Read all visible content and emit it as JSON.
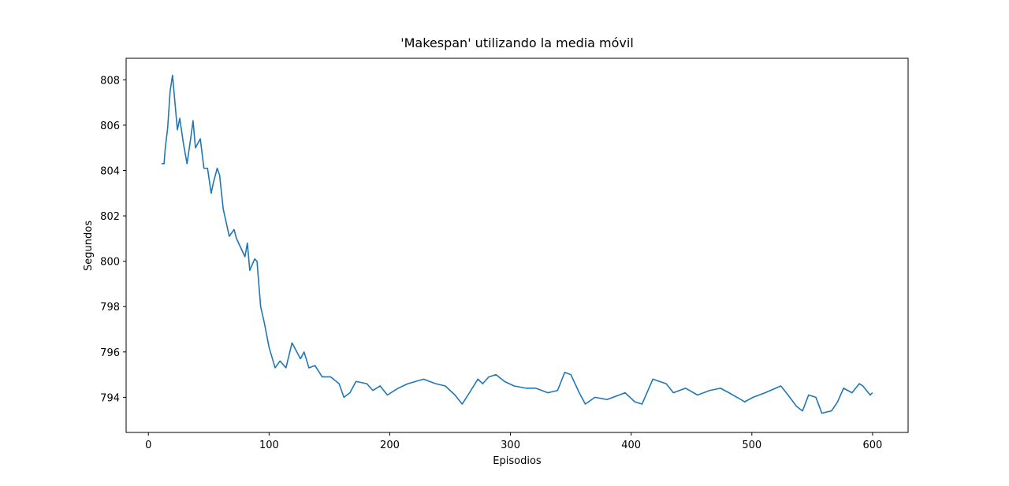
{
  "chart_data": {
    "type": "line",
    "title": "'Makespan' utilizando la media móvil",
    "x_label": "Episodios",
    "y_label": "Segundos",
    "x": [
      11,
      13,
      14,
      16,
      18,
      20,
      24,
      26,
      29,
      32,
      35,
      37,
      39,
      43,
      46,
      49,
      52,
      54,
      57,
      59,
      62,
      67,
      71,
      73,
      80,
      82,
      84,
      88,
      90,
      93,
      96,
      100,
      105,
      109,
      114,
      119,
      126,
      129,
      133,
      138,
      144,
      151,
      158,
      162,
      167,
      172,
      181,
      186,
      192,
      198,
      207,
      215,
      228,
      238,
      246,
      254,
      260,
      266,
      273,
      277,
      282,
      288,
      295,
      303,
      313,
      321,
      331,
      339,
      345,
      350,
      357,
      362,
      370,
      380,
      395,
      403,
      409,
      418,
      429,
      435,
      445,
      455,
      465,
      474,
      481,
      491,
      494,
      501,
      511,
      524,
      530,
      537,
      542,
      547,
      553,
      558,
      566,
      571,
      576,
      583,
      589,
      592,
      598,
      600
    ],
    "series": [
      {
        "name": "Makespan",
        "color": "#1f77b4",
        "values": [
          804.3,
          804.3,
          805.0,
          805.9,
          807.5,
          808.2,
          805.8,
          806.3,
          805.2,
          804.3,
          805.4,
          806.2,
          805.0,
          805.4,
          804.1,
          804.1,
          803.0,
          803.5,
          804.1,
          803.8,
          802.3,
          801.1,
          801.4,
          801.0,
          800.2,
          800.8,
          799.6,
          800.1,
          800.0,
          798.0,
          797.3,
          796.2,
          795.3,
          795.6,
          795.3,
          796.4,
          795.7,
          796.0,
          795.3,
          795.4,
          794.9,
          794.9,
          794.6,
          794.0,
          794.2,
          794.7,
          794.6,
          794.3,
          794.5,
          794.1,
          794.4,
          794.6,
          794.8,
          794.6,
          794.5,
          794.1,
          793.7,
          794.2,
          794.8,
          794.6,
          794.9,
          795.0,
          794.7,
          794.5,
          794.4,
          794.4,
          794.2,
          794.3,
          795.1,
          795.0,
          794.2,
          793.7,
          794.0,
          793.9,
          794.2,
          793.8,
          793.7,
          794.8,
          794.6,
          794.2,
          794.4,
          794.1,
          794.3,
          794.4,
          794.2,
          793.9,
          793.8,
          794.0,
          794.2,
          794.5,
          794.1,
          793.6,
          793.4,
          794.1,
          794.0,
          793.3,
          793.4,
          793.8,
          794.4,
          794.2,
          794.6,
          794.5,
          794.1,
          794.2
        ]
      }
    ],
    "xlim": [
      -18.45,
      629.45
    ],
    "ylim": [
      792.45,
      808.95
    ],
    "xticks": [
      0,
      100,
      200,
      300,
      400,
      500,
      600
    ],
    "yticks": [
      794,
      796,
      798,
      800,
      802,
      804,
      806,
      808
    ],
    "grid": false
  }
}
